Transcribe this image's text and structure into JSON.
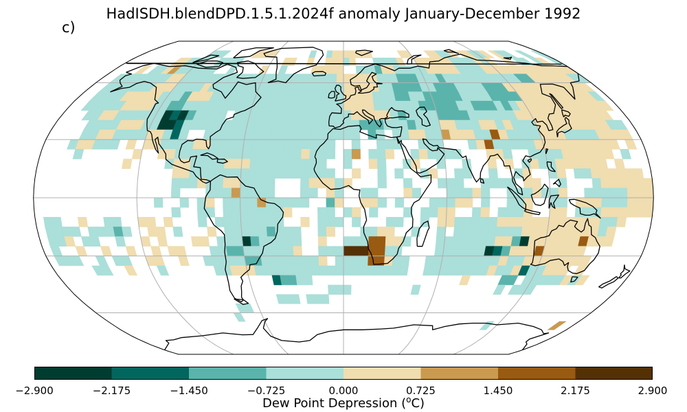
{
  "title": "HadISDH.blendDPD.1.5.1.2024f anomaly January-December 1992",
  "panel_label": "c)",
  "colorbar": {
    "label_text": "Dew Point Depression (",
    "label_sup": "o",
    "label_unit": "C)",
    "ticks": [
      "−2.900",
      "−2.175",
      "−1.450",
      "−0.725",
      "0.000",
      "0.725",
      "1.450",
      "2.175",
      "2.900"
    ],
    "colors": [
      "#003c30",
      "#01665e",
      "#5ab4ac",
      "#abdfd9",
      "#f0ddb0",
      "#c99a50",
      "#995a11",
      "#543005"
    ]
  },
  "map_colors": {
    "background_sea": "#ffffff",
    "coast": "#000000",
    "grid": "#b0b0b0",
    "a": "#abdfd9",
    "b": "#f0ddb0",
    "c": "#5ab4ac",
    "d": "#c99a50",
    "e": "#003c30",
    "f": "#01665e",
    "g": "#995a11",
    "h": "#543005"
  }
}
